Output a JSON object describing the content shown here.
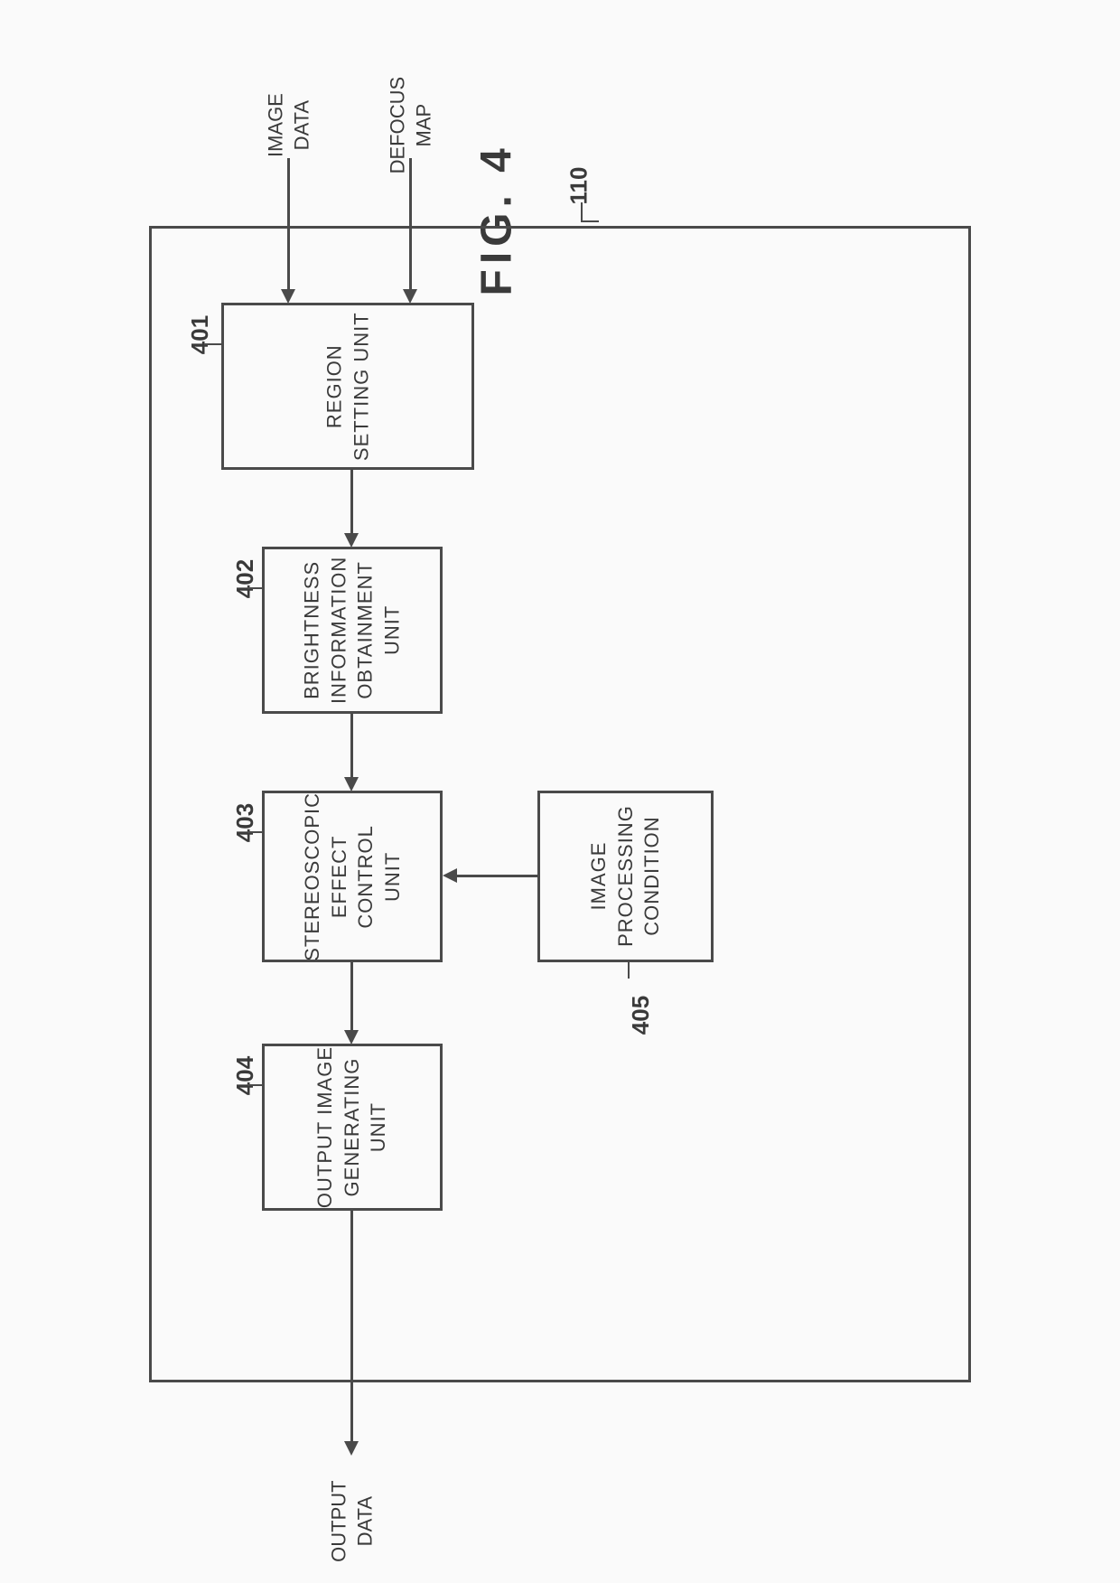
{
  "figure": {
    "title": "FIG. 4",
    "container_ref": "110"
  },
  "blocks": {
    "b401": {
      "ref": "401",
      "label": "REGION\nSETTING UNIT"
    },
    "b402": {
      "ref": "402",
      "label": "BRIGHTNESS\nINFORMATION\nOBTAINMENT\nUNIT"
    },
    "b403": {
      "ref": "403",
      "label": "STEREOSCOPIC\nEFFECT\nCONTROL\nUNIT"
    },
    "b404": {
      "ref": "404",
      "label": "OUTPUT IMAGE\nGENERATING\nUNIT"
    },
    "b405": {
      "ref": "405",
      "label": "IMAGE\nPROCESSING\nCONDITION"
    }
  },
  "io": {
    "input1": "IMAGE\nDATA",
    "input2": "DEFOCUS\nMAP",
    "output": "OUTPUT\nDATA"
  },
  "style": {
    "stroke": "#4a4a4a",
    "bg": "#fafafa",
    "font_block": 22,
    "font_ref": 26,
    "font_title": 48
  }
}
